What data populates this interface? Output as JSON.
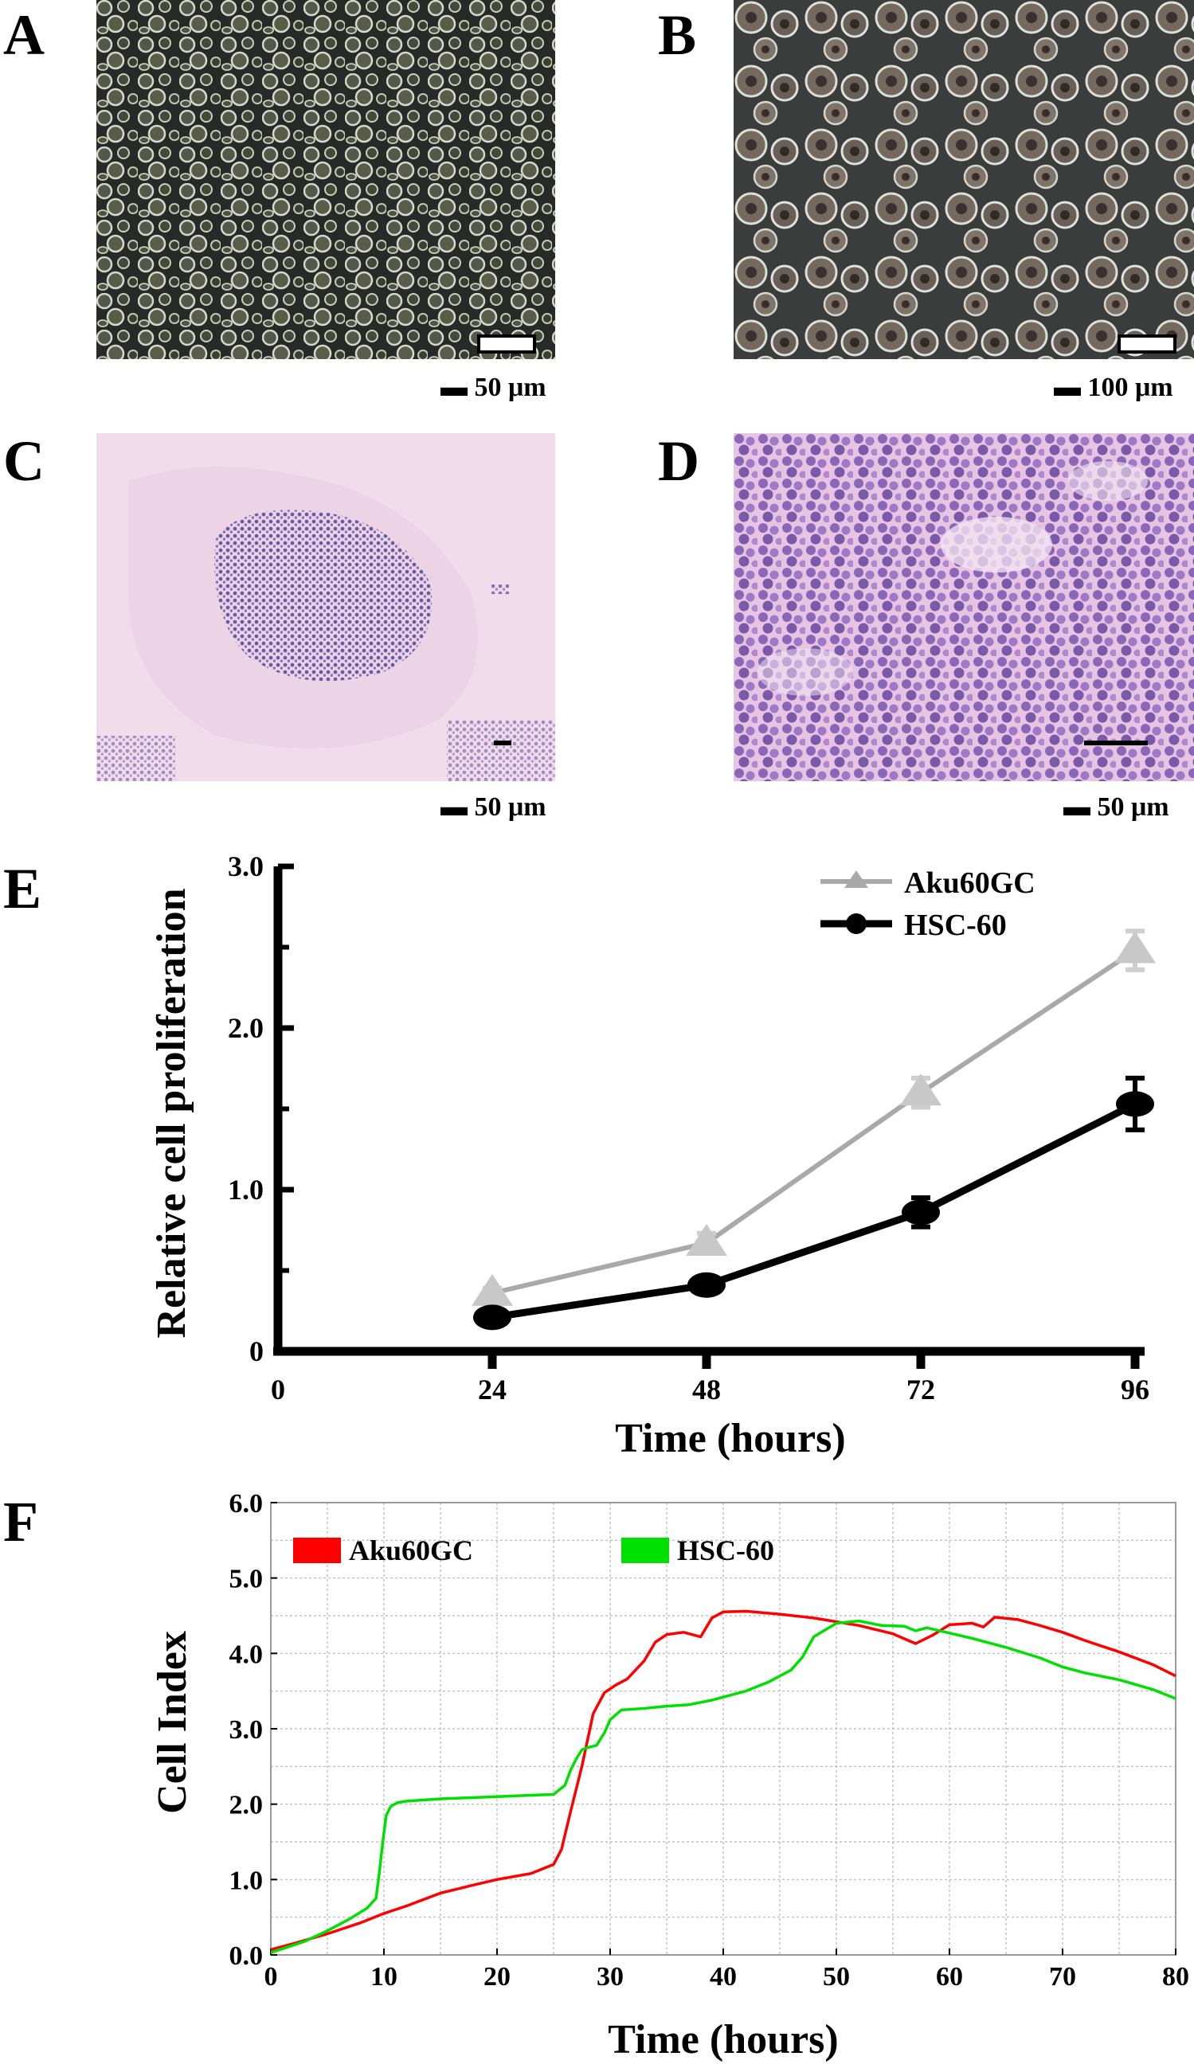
{
  "panels": {
    "a": {
      "letter": "A",
      "scale_text": "50 μm"
    },
    "b": {
      "letter": "B",
      "scale_text": "100 μm"
    },
    "c": {
      "letter": "C",
      "scale_text": "50 μm"
    },
    "d": {
      "letter": "D",
      "scale_text": "50 μm"
    },
    "e": {
      "letter": "E"
    },
    "f": {
      "letter": "F"
    }
  },
  "chart_data": [
    {
      "id": "E",
      "type": "line",
      "xlabel": "Time (hours)",
      "ylabel": "Relative cell proliferation",
      "x": [
        24,
        48,
        72,
        96
      ],
      "x_ticks": [
        "0",
        "24",
        "48",
        "72",
        "96"
      ],
      "y_ticks": [
        "0",
        "1.0",
        "2.0",
        "3.0"
      ],
      "xlim": [
        0,
        96
      ],
      "ylim": [
        0,
        3.0
      ],
      "grid": false,
      "legend_position": "top-right",
      "series": [
        {
          "name": "Aku60GC",
          "color": "#a9a9a9",
          "marker": "triangle",
          "values": [
            0.36,
            0.67,
            1.6,
            2.48
          ],
          "errors": [
            0.03,
            0.06,
            0.09,
            0.12
          ]
        },
        {
          "name": "HSC-60",
          "color": "#000000",
          "marker": "circle",
          "values": [
            0.21,
            0.41,
            0.86,
            1.53
          ],
          "errors": [
            0.02,
            0.04,
            0.09,
            0.16
          ]
        }
      ]
    },
    {
      "id": "F",
      "type": "line",
      "xlabel": "Time (hours)",
      "ylabel": "Cell Index",
      "x_ticks": [
        "0",
        "10",
        "20",
        "30",
        "40",
        "50",
        "60",
        "70",
        "80"
      ],
      "y_ticks": [
        "0.0",
        "1.0",
        "2.0",
        "3.0",
        "4.0",
        "5.0",
        "6.0"
      ],
      "xlim": [
        0,
        80
      ],
      "ylim": [
        0,
        6.0
      ],
      "grid": true,
      "legend_position": "top",
      "series": [
        {
          "name": "Aku60GC",
          "color": "#ff0000",
          "x": [
            0,
            2,
            5,
            8,
            10,
            12,
            15,
            18,
            20,
            23,
            25,
            25.7,
            26.5,
            27.5,
            28.5,
            29.5,
            30.5,
            31.5,
            33,
            34,
            35,
            36.5,
            38,
            39,
            40,
            42,
            45,
            48,
            52,
            55,
            57,
            58.5,
            60,
            62,
            63,
            64,
            66,
            68,
            70,
            72,
            75,
            78,
            80
          ],
          "values": [
            0.07,
            0.15,
            0.28,
            0.43,
            0.55,
            0.65,
            0.82,
            0.93,
            1.0,
            1.08,
            1.2,
            1.4,
            1.9,
            2.5,
            3.2,
            3.48,
            3.58,
            3.66,
            3.9,
            4.15,
            4.25,
            4.28,
            4.22,
            4.47,
            4.55,
            4.56,
            4.52,
            4.47,
            4.37,
            4.26,
            4.13,
            4.24,
            4.38,
            4.4,
            4.35,
            4.48,
            4.45,
            4.37,
            4.28,
            4.17,
            4.02,
            3.85,
            3.7
          ]
        },
        {
          "name": "HSC-60",
          "color": "#00e000",
          "x": [
            0,
            1,
            3,
            5,
            7,
            8.5,
            9.3,
            9.6,
            9.9,
            10.2,
            10.6,
            11.2,
            12,
            15,
            20,
            25,
            26,
            26.5,
            27,
            27.5,
            28,
            28.8,
            29.5,
            30,
            31,
            33,
            35,
            37,
            39,
            40,
            42,
            44,
            46,
            47,
            48,
            50,
            52,
            54,
            56,
            57,
            58,
            60,
            62,
            65,
            68,
            70,
            72,
            75,
            78,
            80
          ],
          "values": [
            0.03,
            0.08,
            0.18,
            0.32,
            0.48,
            0.62,
            0.75,
            1.1,
            1.5,
            1.85,
            1.97,
            2.02,
            2.04,
            2.07,
            2.1,
            2.13,
            2.25,
            2.45,
            2.6,
            2.72,
            2.75,
            2.78,
            2.95,
            3.12,
            3.25,
            3.27,
            3.3,
            3.32,
            3.38,
            3.42,
            3.5,
            3.62,
            3.78,
            3.95,
            4.22,
            4.4,
            4.43,
            4.37,
            4.36,
            4.3,
            4.34,
            4.27,
            4.2,
            4.08,
            3.94,
            3.82,
            3.74,
            3.65,
            3.52,
            3.4
          ]
        }
      ]
    }
  ]
}
